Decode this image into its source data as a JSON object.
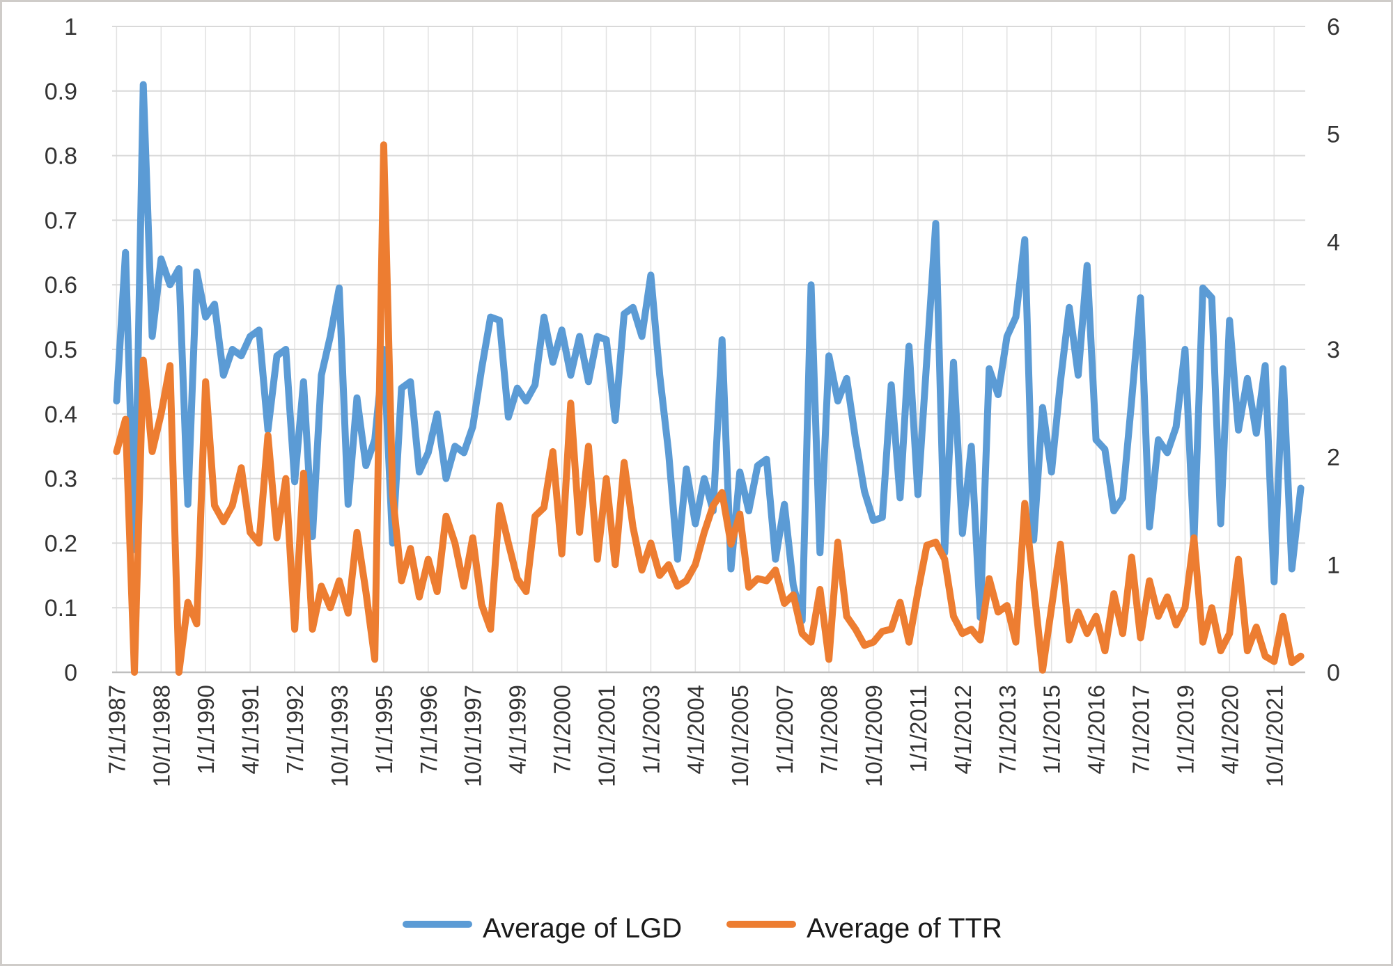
{
  "chart_data": {
    "type": "line",
    "title": "",
    "n_points": 134,
    "x_tick_interval": 5,
    "x_tick_labels": [
      "7/1/1987",
      "10/1/1988",
      "1/1/1990",
      "4/1/1991",
      "7/1/1992",
      "10/1/1993",
      "1/1/1995",
      "7/1/1996",
      "10/1/1997",
      "4/1/1999",
      "7/1/2000",
      "10/1/2001",
      "1/1/2003",
      "4/1/2004",
      "10/1/2005",
      "1/1/2007",
      "7/1/2008",
      "10/1/2009",
      "1/1/2011",
      "4/1/2012",
      "7/1/2013",
      "1/1/2015",
      "4/1/2016",
      "7/1/2017",
      "1/1/2019",
      "4/1/2020",
      "10/1/2021"
    ],
    "left_axis": {
      "min": 0,
      "max": 1,
      "step": 0.1,
      "ticks": [
        "1",
        "0.9",
        "0.8",
        "0.7",
        "0.6",
        "0.5",
        "0.4",
        "0.3",
        "0.2",
        "0.1",
        "0"
      ]
    },
    "right_axis": {
      "min": 0,
      "max": 6,
      "step": 1,
      "ticks": [
        "6",
        "5",
        "4",
        "3",
        "2",
        "1",
        "0"
      ]
    },
    "grid": true,
    "legend_position": "bottom",
    "series": [
      {
        "name": "Average of LGD",
        "axis": "left",
        "color": "#5B9BD5",
        "values": [
          0.42,
          0.65,
          0.19,
          0.91,
          0.52,
          0.64,
          0.6,
          0.625,
          0.26,
          0.62,
          0.55,
          0.57,
          0.46,
          0.5,
          0.49,
          0.52,
          0.53,
          0.375,
          0.49,
          0.5,
          0.295,
          0.45,
          0.21,
          0.46,
          0.52,
          0.595,
          0.26,
          0.425,
          0.32,
          0.36,
          0.5,
          0.2,
          0.44,
          0.45,
          0.31,
          0.34,
          0.4,
          0.3,
          0.35,
          0.34,
          0.38,
          0.47,
          0.55,
          0.545,
          0.395,
          0.44,
          0.42,
          0.445,
          0.55,
          0.48,
          0.53,
          0.46,
          0.52,
          0.45,
          0.52,
          0.515,
          0.39,
          0.555,
          0.565,
          0.52,
          0.615,
          0.46,
          0.34,
          0.175,
          0.315,
          0.23,
          0.3,
          0.25,
          0.515,
          0.16,
          0.31,
          0.25,
          0.32,
          0.33,
          0.175,
          0.26,
          0.135,
          0.08,
          0.6,
          0.185,
          0.49,
          0.42,
          0.455,
          0.36,
          0.28,
          0.235,
          0.24,
          0.445,
          0.27,
          0.505,
          0.275,
          0.485,
          0.695,
          0.185,
          0.48,
          0.215,
          0.35,
          0.085,
          0.47,
          0.43,
          0.52,
          0.55,
          0.67,
          0.205,
          0.41,
          0.31,
          0.45,
          0.565,
          0.46,
          0.63,
          0.36,
          0.345,
          0.25,
          0.27,
          0.42,
          0.58,
          0.225,
          0.36,
          0.34,
          0.38,
          0.5,
          0.2,
          0.595,
          0.58,
          0.23,
          0.545,
          0.375,
          0.455,
          0.37,
          0.475,
          0.14,
          0.47,
          0.16,
          0.285
        ]
      },
      {
        "name": "Average of TTR",
        "axis": "right",
        "color": "#ED7D31",
        "values": [
          2.05,
          2.35,
          0.0,
          2.9,
          2.05,
          2.4,
          2.85,
          0.0,
          0.65,
          0.45,
          2.7,
          1.55,
          1.4,
          1.55,
          1.9,
          1.3,
          1.2,
          2.2,
          1.25,
          1.8,
          0.4,
          1.85,
          0.4,
          0.8,
          0.6,
          0.85,
          0.55,
          1.3,
          0.75,
          0.12,
          4.9,
          1.65,
          0.85,
          1.15,
          0.7,
          1.05,
          0.75,
          1.45,
          1.2,
          0.8,
          1.25,
          0.63,
          0.4,
          1.55,
          1.2,
          0.87,
          0.75,
          1.45,
          1.53,
          2.05,
          1.1,
          2.5,
          1.3,
          2.1,
          1.05,
          1.8,
          1.0,
          1.95,
          1.35,
          0.95,
          1.2,
          0.9,
          1.0,
          0.8,
          0.85,
          1.0,
          1.3,
          1.55,
          1.67,
          1.19,
          1.47,
          0.79,
          0.87,
          0.85,
          0.95,
          0.64,
          0.72,
          0.36,
          0.28,
          0.77,
          0.12,
          1.21,
          0.52,
          0.4,
          0.25,
          0.28,
          0.38,
          0.4,
          0.65,
          0.28,
          0.75,
          1.18,
          1.21,
          1.05,
          0.52,
          0.36,
          0.4,
          0.3,
          0.87,
          0.56,
          0.62,
          0.28,
          1.57,
          0.8,
          0.02,
          0.6,
          1.19,
          0.3,
          0.56,
          0.36,
          0.52,
          0.2,
          0.73,
          0.36,
          1.07,
          0.32,
          0.85,
          0.52,
          0.7,
          0.44,
          0.6,
          1.25,
          0.28,
          0.6,
          0.2,
          0.36,
          1.05,
          0.2,
          0.42,
          0.15,
          0.1,
          0.52,
          0.09,
          0.15
        ]
      }
    ]
  },
  "colors": {
    "background": "#FFFFFF",
    "border": "#CFCCC9",
    "gridline": "#D9D9D9",
    "vertical_gridline": "#E2E2E2",
    "axis_line": "#BFBFBF",
    "tick_text": "#333333",
    "legend_text": "#1a1a1a"
  }
}
